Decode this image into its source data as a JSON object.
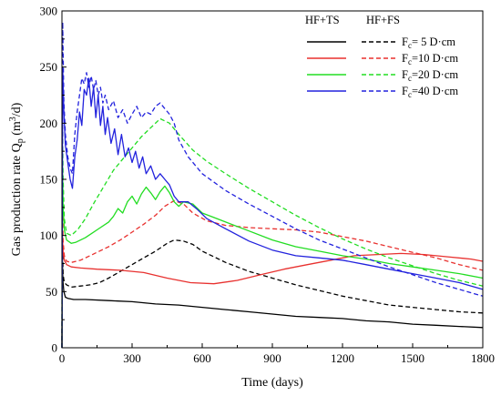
{
  "chart_data": {
    "type": "line",
    "xlabel": "Time (days)",
    "ylabel": "Gas production rate Q",
    "ylabel_sub": "p",
    "ylabel_unit_pre": " (m",
    "ylabel_unit_sup": "3",
    "ylabel_unit_post": "/d)",
    "xlim": [
      0,
      1800
    ],
    "ylim": [
      0,
      300
    ],
    "xticks": [
      0,
      300,
      600,
      900,
      1200,
      1500,
      1800
    ],
    "yticks": [
      0,
      50,
      100,
      150,
      200,
      250,
      300
    ],
    "grid": false,
    "legend": {
      "placement": "top-right",
      "header_solid": "HF+TS",
      "header_dashed": "HF+FS",
      "entries": [
        {
          "prefix": "F",
          "sub": "c",
          "suffix": "= 5  D·cm",
          "color": "#000000"
        },
        {
          "prefix": "F",
          "sub": "c",
          "suffix": "=10  D·cm",
          "color": "#e8312f"
        },
        {
          "prefix": "F",
          "sub": "c",
          "suffix": "=20  D·cm",
          "color": "#22dd22"
        },
        {
          "prefix": "F",
          "sub": "c",
          "suffix": "=40  D·cm",
          "color": "#2222dd"
        }
      ]
    },
    "series": [
      {
        "group": "HF+TS",
        "fc": 5,
        "color": "#000000",
        "dash": false,
        "points": [
          [
            0,
            0
          ],
          [
            2,
            80
          ],
          [
            4,
            60
          ],
          [
            8,
            50
          ],
          [
            15,
            45
          ],
          [
            25,
            44
          ],
          [
            50,
            43
          ],
          [
            100,
            43
          ],
          [
            200,
            42
          ],
          [
            300,
            41
          ],
          [
            400,
            39
          ],
          [
            500,
            38
          ],
          [
            600,
            36
          ],
          [
            700,
            34
          ],
          [
            800,
            32
          ],
          [
            900,
            30
          ],
          [
            1000,
            28
          ],
          [
            1100,
            27
          ],
          [
            1200,
            26
          ],
          [
            1300,
            24
          ],
          [
            1400,
            23
          ],
          [
            1500,
            21
          ],
          [
            1600,
            20
          ],
          [
            1700,
            19
          ],
          [
            1800,
            18
          ]
        ]
      },
      {
        "group": "HF+FS",
        "fc": 5,
        "color": "#000000",
        "dash": true,
        "points": [
          [
            0,
            0
          ],
          [
            2,
            90
          ],
          [
            5,
            65
          ],
          [
            10,
            58
          ],
          [
            20,
            56
          ],
          [
            40,
            54
          ],
          [
            80,
            55
          ],
          [
            120,
            56
          ],
          [
            160,
            58
          ],
          [
            200,
            62
          ],
          [
            250,
            68
          ],
          [
            300,
            74
          ],
          [
            350,
            80
          ],
          [
            400,
            86
          ],
          [
            450,
            93
          ],
          [
            480,
            96
          ],
          [
            520,
            95
          ],
          [
            560,
            92
          ],
          [
            600,
            86
          ],
          [
            700,
            76
          ],
          [
            800,
            68
          ],
          [
            900,
            62
          ],
          [
            1000,
            56
          ],
          [
            1100,
            51
          ],
          [
            1200,
            46
          ],
          [
            1300,
            42
          ],
          [
            1400,
            38
          ],
          [
            1500,
            36
          ],
          [
            1600,
            34
          ],
          [
            1700,
            32
          ],
          [
            1800,
            31
          ]
        ]
      },
      {
        "group": "HF+TS",
        "fc": 10,
        "color": "#e8312f",
        "dash": false,
        "points": [
          [
            0,
            0
          ],
          [
            2,
            100
          ],
          [
            5,
            85
          ],
          [
            10,
            78
          ],
          [
            20,
            74
          ],
          [
            40,
            72
          ],
          [
            80,
            71
          ],
          [
            150,
            70
          ],
          [
            250,
            69
          ],
          [
            350,
            67
          ],
          [
            450,
            62
          ],
          [
            550,
            58
          ],
          [
            650,
            57
          ],
          [
            750,
            60
          ],
          [
            850,
            65
          ],
          [
            950,
            70
          ],
          [
            1050,
            74
          ],
          [
            1150,
            78
          ],
          [
            1250,
            82
          ],
          [
            1350,
            83
          ],
          [
            1450,
            84
          ],
          [
            1550,
            83
          ],
          [
            1650,
            81
          ],
          [
            1750,
            79
          ],
          [
            1800,
            77
          ]
        ]
      },
      {
        "group": "HF+FS",
        "fc": 10,
        "color": "#e8312f",
        "dash": true,
        "points": [
          [
            0,
            0
          ],
          [
            2,
            130
          ],
          [
            5,
            95
          ],
          [
            10,
            82
          ],
          [
            20,
            77
          ],
          [
            40,
            76
          ],
          [
            80,
            78
          ],
          [
            120,
            82
          ],
          [
            160,
            86
          ],
          [
            200,
            90
          ],
          [
            250,
            96
          ],
          [
            300,
            103
          ],
          [
            350,
            110
          ],
          [
            400,
            118
          ],
          [
            440,
            126
          ],
          [
            480,
            131
          ],
          [
            520,
            128
          ],
          [
            560,
            120
          ],
          [
            620,
            113
          ],
          [
            700,
            109
          ],
          [
            800,
            107
          ],
          [
            900,
            106
          ],
          [
            1000,
            105
          ],
          [
            1100,
            103
          ],
          [
            1200,
            99
          ],
          [
            1300,
            95
          ],
          [
            1400,
            90
          ],
          [
            1500,
            85
          ],
          [
            1600,
            80
          ],
          [
            1700,
            74
          ],
          [
            1800,
            69
          ]
        ]
      },
      {
        "group": "HF+TS",
        "fc": 20,
        "color": "#22dd22",
        "dash": false,
        "points": [
          [
            0,
            0
          ],
          [
            2,
            170
          ],
          [
            5,
            125
          ],
          [
            10,
            105
          ],
          [
            20,
            96
          ],
          [
            40,
            93
          ],
          [
            60,
            94
          ],
          [
            100,
            98
          ],
          [
            150,
            105
          ],
          [
            200,
            112
          ],
          [
            220,
            117
          ],
          [
            240,
            124
          ],
          [
            260,
            120
          ],
          [
            280,
            130
          ],
          [
            300,
            135
          ],
          [
            320,
            128
          ],
          [
            340,
            137
          ],
          [
            360,
            143
          ],
          [
            380,
            138
          ],
          [
            400,
            132
          ],
          [
            420,
            139
          ],
          [
            440,
            144
          ],
          [
            460,
            138
          ],
          [
            480,
            130
          ],
          [
            500,
            126
          ],
          [
            520,
            130
          ],
          [
            560,
            128
          ],
          [
            600,
            120
          ],
          [
            650,
            116
          ],
          [
            700,
            112
          ],
          [
            800,
            104
          ],
          [
            900,
            96
          ],
          [
            1000,
            90
          ],
          [
            1100,
            86
          ],
          [
            1200,
            82
          ],
          [
            1300,
            79
          ],
          [
            1400,
            75
          ],
          [
            1500,
            72
          ],
          [
            1600,
            69
          ],
          [
            1700,
            66
          ],
          [
            1800,
            62
          ]
        ]
      },
      {
        "group": "HF+FS",
        "fc": 20,
        "color": "#22dd22",
        "dash": true,
        "points": [
          [
            0,
            0
          ],
          [
            2,
            200
          ],
          [
            5,
            150
          ],
          [
            10,
            115
          ],
          [
            20,
            102
          ],
          [
            40,
            100
          ],
          [
            70,
            106
          ],
          [
            100,
            115
          ],
          [
            140,
            130
          ],
          [
            180,
            144
          ],
          [
            220,
            158
          ],
          [
            260,
            168
          ],
          [
            300,
            178
          ],
          [
            340,
            188
          ],
          [
            380,
            196
          ],
          [
            420,
            204
          ],
          [
            460,
            200
          ],
          [
            500,
            190
          ],
          [
            560,
            176
          ],
          [
            620,
            166
          ],
          [
            700,
            155
          ],
          [
            800,
            142
          ],
          [
            900,
            130
          ],
          [
            1000,
            118
          ],
          [
            1100,
            107
          ],
          [
            1200,
            97
          ],
          [
            1300,
            88
          ],
          [
            1400,
            80
          ],
          [
            1500,
            73
          ],
          [
            1600,
            66
          ],
          [
            1700,
            60
          ],
          [
            1800,
            55
          ]
        ]
      },
      {
        "group": "HF+TS",
        "fc": 40,
        "color": "#2222dd",
        "dash": false,
        "points": [
          [
            0,
            0
          ],
          [
            3,
            250
          ],
          [
            8,
            210
          ],
          [
            15,
            180
          ],
          [
            25,
            165
          ],
          [
            35,
            150
          ],
          [
            45,
            142
          ],
          [
            55,
            170
          ],
          [
            65,
            185
          ],
          [
            75,
            210
          ],
          [
            85,
            198
          ],
          [
            95,
            230
          ],
          [
            105,
            225
          ],
          [
            115,
            240
          ],
          [
            125,
            215
          ],
          [
            135,
            232
          ],
          [
            145,
            205
          ],
          [
            155,
            225
          ],
          [
            165,
            198
          ],
          [
            175,
            215
          ],
          [
            185,
            190
          ],
          [
            195,
            205
          ],
          [
            210,
            182
          ],
          [
            225,
            195
          ],
          [
            240,
            172
          ],
          [
            255,
            190
          ],
          [
            270,
            170
          ],
          [
            285,
            178
          ],
          [
            300,
            165
          ],
          [
            315,
            175
          ],
          [
            330,
            160
          ],
          [
            345,
            170
          ],
          [
            360,
            155
          ],
          [
            380,
            162
          ],
          [
            400,
            150
          ],
          [
            420,
            155
          ],
          [
            440,
            150
          ],
          [
            460,
            145
          ],
          [
            480,
            135
          ],
          [
            500,
            130
          ],
          [
            540,
            130
          ],
          [
            580,
            123
          ],
          [
            620,
            115
          ],
          [
            700,
            106
          ],
          [
            800,
            95
          ],
          [
            900,
            87
          ],
          [
            1000,
            82
          ],
          [
            1100,
            80
          ],
          [
            1200,
            78
          ],
          [
            1300,
            74
          ],
          [
            1400,
            70
          ],
          [
            1500,
            66
          ],
          [
            1600,
            62
          ],
          [
            1700,
            58
          ],
          [
            1800,
            52
          ]
        ]
      },
      {
        "group": "HF+FS",
        "fc": 40,
        "color": "#2222dd",
        "dash": true,
        "points": [
          [
            0,
            0
          ],
          [
            3,
            290
          ],
          [
            8,
            220
          ],
          [
            15,
            190
          ],
          [
            25,
            170
          ],
          [
            35,
            160
          ],
          [
            45,
            155
          ],
          [
            55,
            190
          ],
          [
            65,
            210
          ],
          [
            75,
            225
          ],
          [
            85,
            240
          ],
          [
            95,
            235
          ],
          [
            105,
            245
          ],
          [
            115,
            232
          ],
          [
            125,
            242
          ],
          [
            135,
            230
          ],
          [
            145,
            238
          ],
          [
            155,
            225
          ],
          [
            165,
            232
          ],
          [
            175,
            218
          ],
          [
            185,
            225
          ],
          [
            200,
            212
          ],
          [
            220,
            220
          ],
          [
            240,
            205
          ],
          [
            260,
            212
          ],
          [
            280,
            200
          ],
          [
            300,
            208
          ],
          [
            320,
            215
          ],
          [
            340,
            205
          ],
          [
            360,
            210
          ],
          [
            380,
            208
          ],
          [
            400,
            215
          ],
          [
            420,
            218
          ],
          [
            440,
            213
          ],
          [
            460,
            208
          ],
          [
            480,
            200
          ],
          [
            500,
            185
          ],
          [
            540,
            170
          ],
          [
            600,
            155
          ],
          [
            700,
            140
          ],
          [
            800,
            128
          ],
          [
            900,
            117
          ],
          [
            1000,
            106
          ],
          [
            1100,
            96
          ],
          [
            1200,
            88
          ],
          [
            1300,
            80
          ],
          [
            1400,
            72
          ],
          [
            1500,
            65
          ],
          [
            1600,
            58
          ],
          [
            1700,
            52
          ],
          [
            1800,
            46
          ]
        ]
      }
    ]
  }
}
